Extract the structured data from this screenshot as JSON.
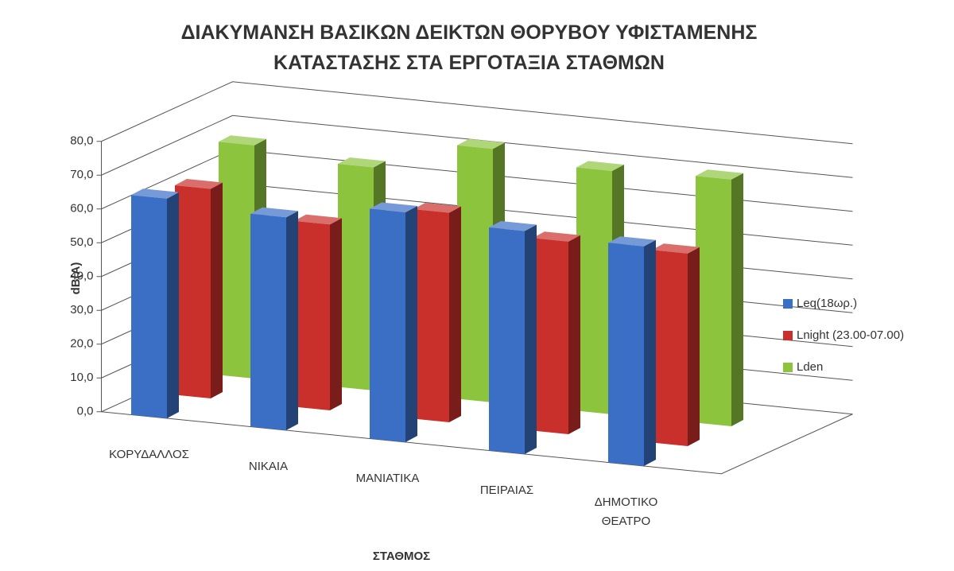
{
  "chart_data": {
    "type": "bar3d",
    "title": "ΔΙΑΚΥΜΑΝΣΗ ΒΑΣΙΚΩΝ ΔΕΙΚΤΩΝ ΘΟΡΥΒΟΥ ΥΦΙΣΤΑΜΕΝΗΣ ΚΑΤΑΣΤΑΣΗΣ ΣΤΑ ΕΡΓΟΤΑΞΙΑ ΣΤΑΘΜΩΝ",
    "x_label": "ΣΤΑΘΜΟΣ",
    "y_label": "dB(A)",
    "categories": [
      "ΚΟΡΥΔΑΛΛΟΣ",
      "ΝΙΚΑΙΑ",
      "ΜΑΝΙΑΤΙΚΑ",
      "ΠΕΙΡΑΙΑΣ",
      "ΔΗΜΟΤΙΚΟ ΘΕΑΤΡΟ"
    ],
    "series": [
      {
        "name": "Leq(18ωρ.)",
        "color": "#3b6fc6",
        "values": [
          65,
          63,
          68,
          66,
          65
        ]
      },
      {
        "name": "Lnight (23.00-07.00)",
        "color": "#c9302c",
        "values": [
          62,
          55,
          62,
          57,
          57
        ]
      },
      {
        "name": "Lden",
        "color": "#8cc43e",
        "values": [
          69,
          66,
          75,
          72,
          73
        ]
      }
    ],
    "ylim": [
      0,
      80
    ],
    "yticks": [
      {
        "value": 0,
        "label": "0,0"
      },
      {
        "value": 10,
        "label": "10,0"
      },
      {
        "value": 20,
        "label": "20,0"
      },
      {
        "value": 30,
        "label": "30,0"
      },
      {
        "value": 40,
        "label": "40,0"
      },
      {
        "value": 50,
        "label": "50,0"
      },
      {
        "value": 60,
        "label": "60,0"
      },
      {
        "value": 70,
        "label": "70,0"
      },
      {
        "value": 80,
        "label": "80,0"
      }
    ],
    "grid": true,
    "legend": "right"
  }
}
